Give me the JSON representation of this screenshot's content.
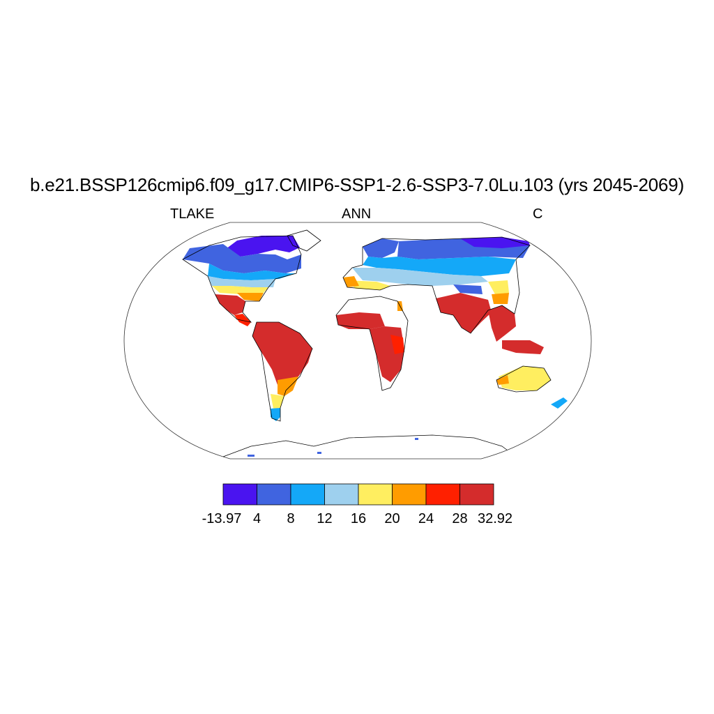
{
  "title": "b.e21.BSSP126cmip6.f09_g17.CMIP6-SSP1-2.6-SSP3-7.0Lu.103 (yrs 2045-2069)",
  "left_label": "TLAKE",
  "center_label": "ANN",
  "right_label": "C",
  "colorbar": {
    "labels": [
      "-13.97",
      "4",
      "8",
      "12",
      "16",
      "20",
      "24",
      "28",
      "32.92"
    ],
    "colors": [
      "#4a14f0",
      "#4064e0",
      "#14a8f8",
      "#9ed0ee",
      "#ffee60",
      "#ff9c00",
      "#ff2000",
      "#d42c2c"
    ]
  }
}
